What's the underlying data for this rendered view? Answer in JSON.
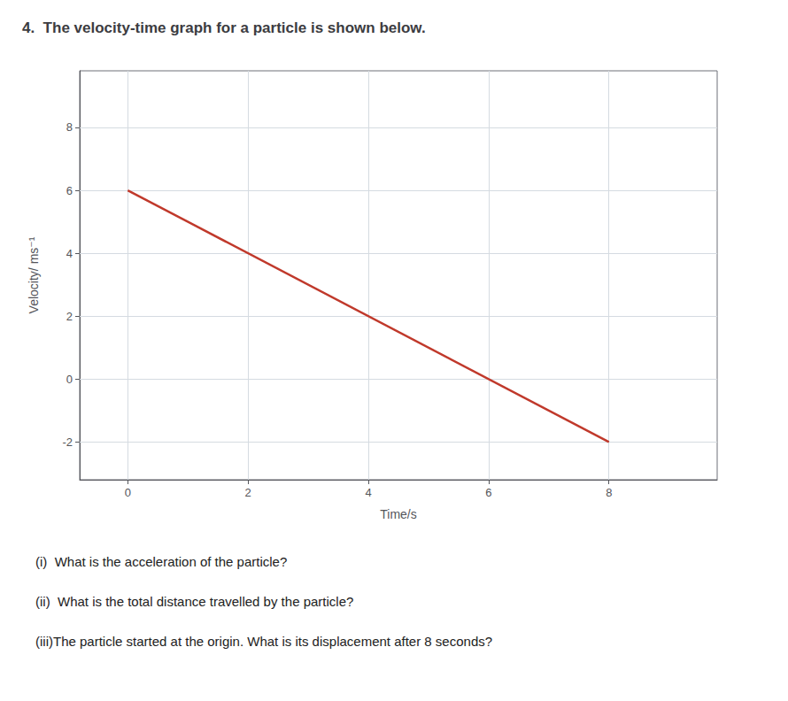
{
  "chart_data": {
    "type": "line",
    "title": "4.  The velocity-time graph for a particle is shown below.",
    "xlabel": "Time/s",
    "ylabel": "Velocity/ ms⁻¹",
    "annotations": [
      "(i)  What is the acceleration of the particle?",
      "(ii)  What is the total distance travelled by the particle?",
      "(iii)The particle started at the origin. What is its displacement after 8 seconds?"
    ],
    "x": [
      0,
      8
    ],
    "values": [
      6,
      -2
    ],
    "color": "#c0392b",
    "xlim": [
      -0.8,
      9.8
    ],
    "ylim": [
      -3.2,
      9.8
    ],
    "xticks": [
      0,
      2,
      4,
      6,
      8
    ],
    "yticks": [
      -2,
      0,
      2,
      4,
      6,
      8
    ],
    "grid": true
  }
}
